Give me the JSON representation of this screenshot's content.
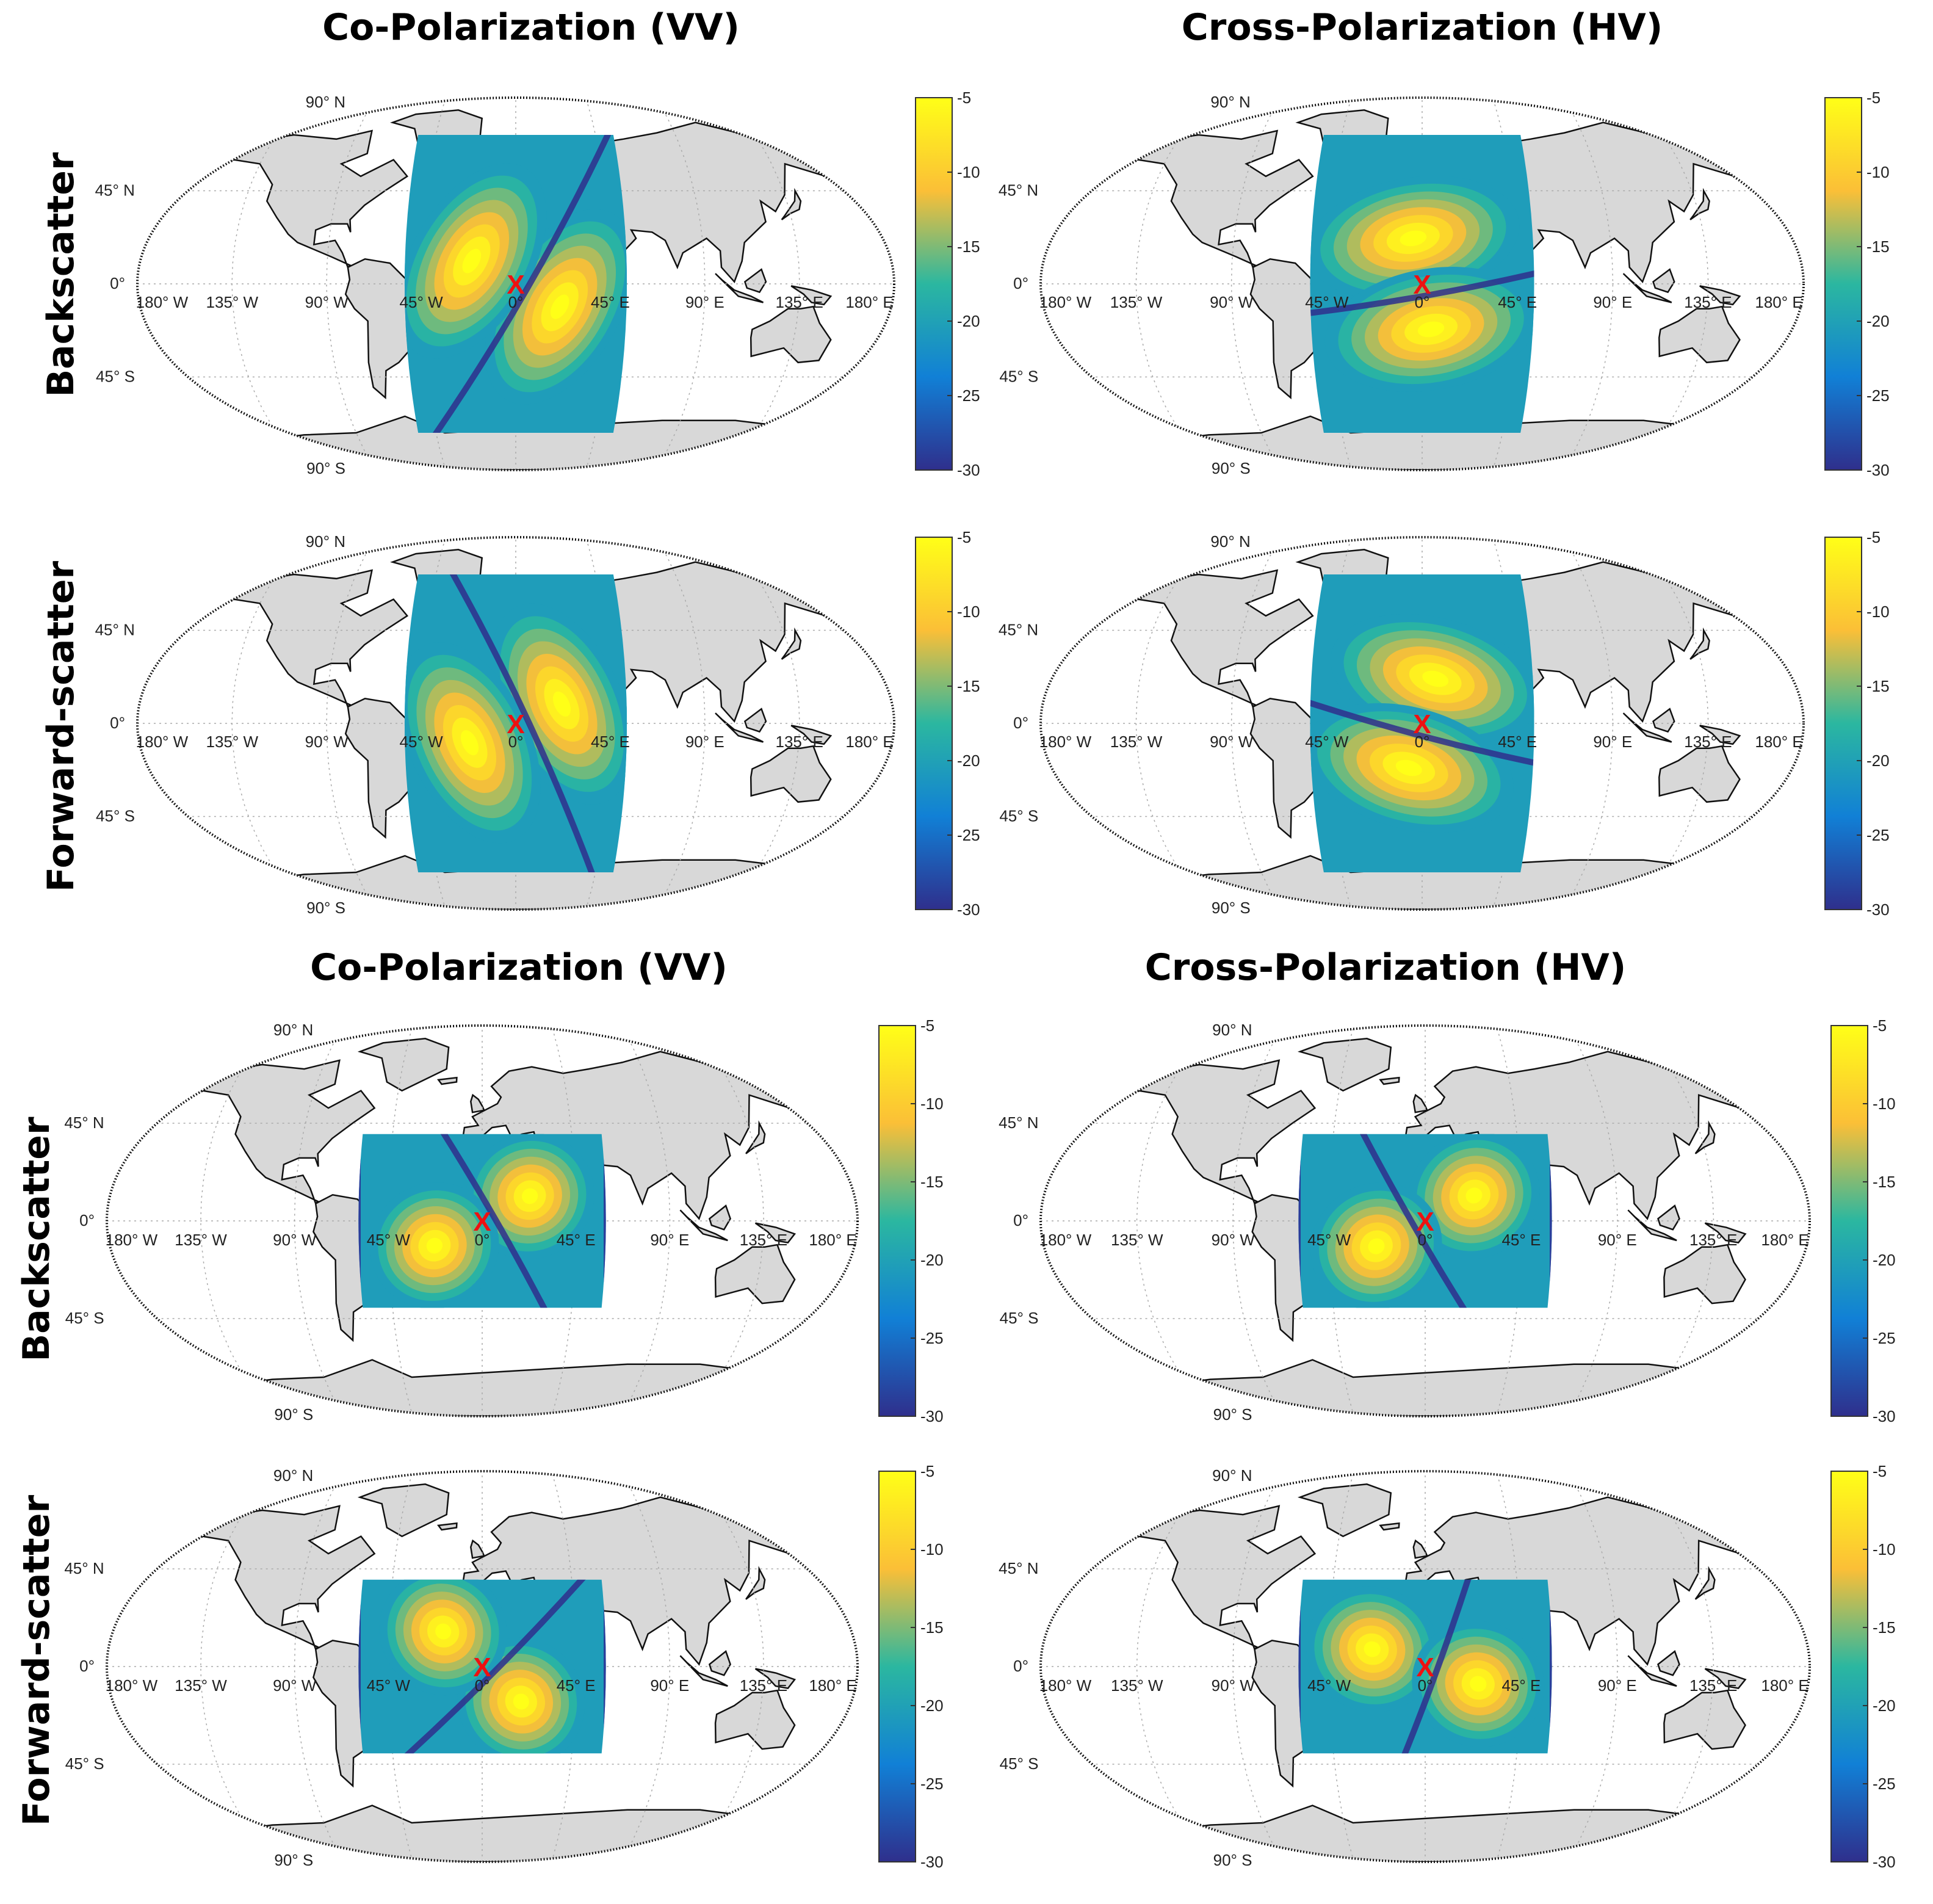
{
  "groups": [
    {
      "col_titles": [
        "Co-Polarization (VV)",
        "Cross-Polarization (HV)"
      ],
      "row_labels": [
        "Backscatter",
        "Forward-scatter"
      ]
    },
    {
      "col_titles": [
        "Co-Polarization (VV)",
        "Cross-Polarization (HV)"
      ],
      "row_labels": [
        "Backscatter",
        "Forward-scatter"
      ]
    }
  ],
  "colorbar": {
    "ticks": [
      "-5",
      "-10",
      "-15",
      "-20",
      "-25",
      "-30"
    ],
    "min": -30,
    "max": -5,
    "colors": [
      "#ffff17",
      "#fbbf37",
      "#2bb7a0",
      "#1180d6",
      "#2f2f8c"
    ]
  },
  "map_labels": {
    "lat": [
      "90°  N",
      "45°  N",
      "0°",
      "45°  S",
      "90°  S"
    ],
    "lon": [
      "180°  W",
      "135°  W",
      "90°  W",
      "45°  W",
      "0°",
      "45°  E",
      "90°  E",
      "135°  E",
      "180°  E"
    ]
  },
  "marker": "X",
  "panels": [
    {
      "id": "p1",
      "group": "upper",
      "polarization": "Co-Polarization (VV)",
      "geometry": "Backscatter",
      "swath_lon": [
        -55,
        55
      ],
      "swath_lat": [
        -72,
        72
      ],
      "center": [
        0,
        0
      ],
      "pattern": "vv",
      "angle": -30
    },
    {
      "id": "p2",
      "group": "upper",
      "polarization": "Cross-Polarization (HV)",
      "geometry": "Backscatter",
      "swath_lon": [
        -55,
        55
      ],
      "swath_lat": [
        -72,
        72
      ],
      "center": [
        0,
        0
      ],
      "pattern": "hv",
      "angle": 10
    },
    {
      "id": "p3",
      "group": "upper",
      "polarization": "Co-Polarization (VV)",
      "geometry": "Forward-scatter",
      "swath_lon": [
        -55,
        55
      ],
      "swath_lat": [
        -72,
        72
      ],
      "center": [
        0,
        0
      ],
      "pattern": "vv",
      "angle": 25
    },
    {
      "id": "p4",
      "group": "upper",
      "polarization": "Cross-Polarization (HV)",
      "geometry": "Forward-scatter",
      "swath_lon": [
        -55,
        55
      ],
      "swath_lat": [
        -72,
        72
      ],
      "center": [
        0,
        0
      ],
      "pattern": "hv",
      "angle": -15
    },
    {
      "id": "p5",
      "group": "lower",
      "polarization": "Co-Polarization (VV)",
      "geometry": "Backscatter",
      "swath_lon": [
        -60,
        60
      ],
      "swath_lat": [
        -40,
        40
      ],
      "center": [
        0,
        0
      ],
      "pattern": "vv",
      "angle": 30
    },
    {
      "id": "p6",
      "group": "lower",
      "polarization": "Cross-Polarization (HV)",
      "geometry": "Backscatter",
      "swath_lon": [
        -60,
        60
      ],
      "swath_lat": [
        -40,
        40
      ],
      "center": [
        0,
        0
      ],
      "pattern": "hv",
      "angle": -60
    },
    {
      "id": "p7",
      "group": "lower",
      "polarization": "Co-Polarization (VV)",
      "geometry": "Forward-scatter",
      "swath_lon": [
        -60,
        60
      ],
      "swath_lat": [
        -40,
        40
      ],
      "center": [
        0,
        0
      ],
      "pattern": "vv",
      "angle": -45
    },
    {
      "id": "p8",
      "group": "lower",
      "polarization": "Cross-Polarization (HV)",
      "geometry": "Forward-scatter",
      "swath_lon": [
        -60,
        60
      ],
      "swath_lat": [
        -40,
        40
      ],
      "center": [
        0,
        0
      ],
      "pattern": "hv",
      "angle": 70
    }
  ]
}
